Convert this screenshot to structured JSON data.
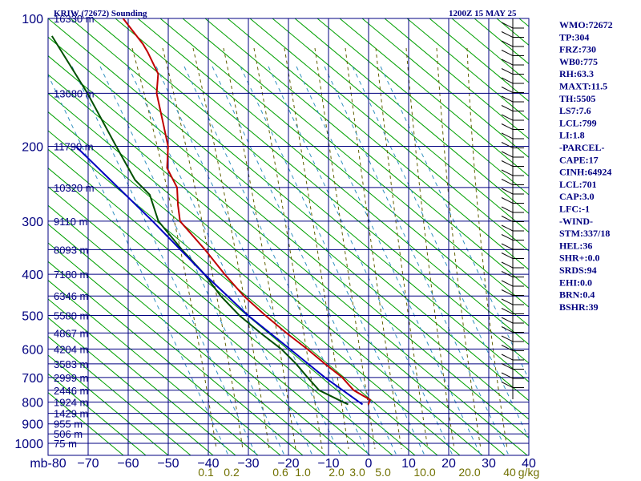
{
  "header": {
    "title": "KRIW (72672) Sounding",
    "time": "1200Z 15 MAY 25"
  },
  "colors": {
    "grid": "#000080",
    "dry_adiabat": "#00a000",
    "moist_adiabat": "#606000",
    "mixing_ratio": "#3090c0",
    "temperature": "#c00000",
    "dewpoint": "#005000",
    "parcel": "#0000c0",
    "wind": "#000000"
  },
  "chart_data": {
    "type": "line",
    "title": "KRIW (72672) Sounding",
    "x_axis": {
      "label": "",
      "range": [
        -80,
        40
      ],
      "ticks": [
        "mb-80",
        "−70",
        "−60",
        "−50",
        "−40",
        "−30",
        "−20",
        "−10",
        "0",
        "10",
        "20",
        "30",
        "40"
      ]
    },
    "y_axis": {
      "label": "",
      "scale": "log",
      "range": [
        1050,
        100
      ],
      "ticks": [
        "100",
        "200",
        "300",
        "400",
        "500",
        "600",
        "700",
        "800",
        "900",
        "1000"
      ]
    },
    "height_labels": [
      "16330 m",
      "13680 m",
      "11790 m",
      "10320 m",
      "9110 m",
      "8093 m",
      "7180 m",
      "6346 m",
      "5580 m",
      "4867 m",
      "4204 m",
      "3583 m",
      "2999 m",
      "2446 m",
      "1924 m",
      "1429 m",
      "955 m",
      "506 m",
      "75 m"
    ],
    "mixing_ratio_labels": [
      "0.1",
      "0.2",
      "0.6",
      "1.0",
      "2.0",
      "3.0",
      "5.0",
      "10.0",
      "20.0",
      "40",
      "g/kg"
    ],
    "series": [
      {
        "name": "Temperature",
        "points": [
          [
            100,
            -54
          ],
          [
            115,
            -49
          ],
          [
            120,
            -48
          ],
          [
            135,
            -46
          ],
          [
            150,
            -48
          ],
          [
            175,
            -48
          ],
          [
            200,
            -48
          ],
          [
            225,
            -50
          ],
          [
            250,
            -48
          ],
          [
            275,
            -49
          ],
          [
            300,
            -49.5
          ],
          [
            350,
            -43
          ],
          [
            400,
            -38
          ],
          [
            450,
            -33
          ],
          [
            500,
            -27
          ],
          [
            550,
            -21
          ],
          [
            600,
            -15
          ],
          [
            650,
            -10
          ],
          [
            700,
            -5
          ],
          [
            750,
            -2
          ],
          [
            790,
            3
          ],
          [
            810,
            2
          ]
        ]
      },
      {
        "name": "Dewpoint",
        "points": [
          [
            110,
            -80
          ],
          [
            150,
            -72
          ],
          [
            200,
            -66
          ],
          [
            240,
            -62
          ],
          [
            260,
            -58
          ],
          [
            300,
            -57
          ],
          [
            350,
            -51
          ],
          [
            400,
            -45
          ],
          [
            450,
            -41
          ],
          [
            500,
            -36
          ],
          [
            550,
            -30
          ],
          [
            600,
            -24
          ],
          [
            650,
            -20
          ],
          [
            700,
            -17
          ],
          [
            750,
            -14
          ],
          [
            790,
            -8
          ],
          [
            810,
            -5
          ]
        ]
      },
      {
        "name": "Parcel",
        "points": [
          [
            200,
            -80
          ],
          [
            300,
            -59
          ],
          [
            400,
            -45
          ],
          [
            500,
            -33
          ],
          [
            600,
            -21
          ],
          [
            700,
            -11
          ],
          [
            800,
            -1
          ],
          [
            810,
            0
          ]
        ]
      }
    ]
  },
  "indices": [
    "WMO:72672",
    "TP:304",
    "FRZ:730",
    "WB0:775",
    "RH:63.3",
    "MAXT:11.5",
    "TH:5505",
    "LS7:7.6",
    "LCL:799",
    "LI:1.8",
    "-PARCEL-",
    "CAPE:17",
    "CINH:64924",
    "LCL:701",
    "CAP:3.0",
    "LFC:-1",
    "-WIND-",
    "STM:337/18",
    "HEL:36",
    "SHR+:0.0",
    "SRDS:94",
    "EHI:0.0",
    "BRN:0.4",
    "BSHR:39"
  ]
}
